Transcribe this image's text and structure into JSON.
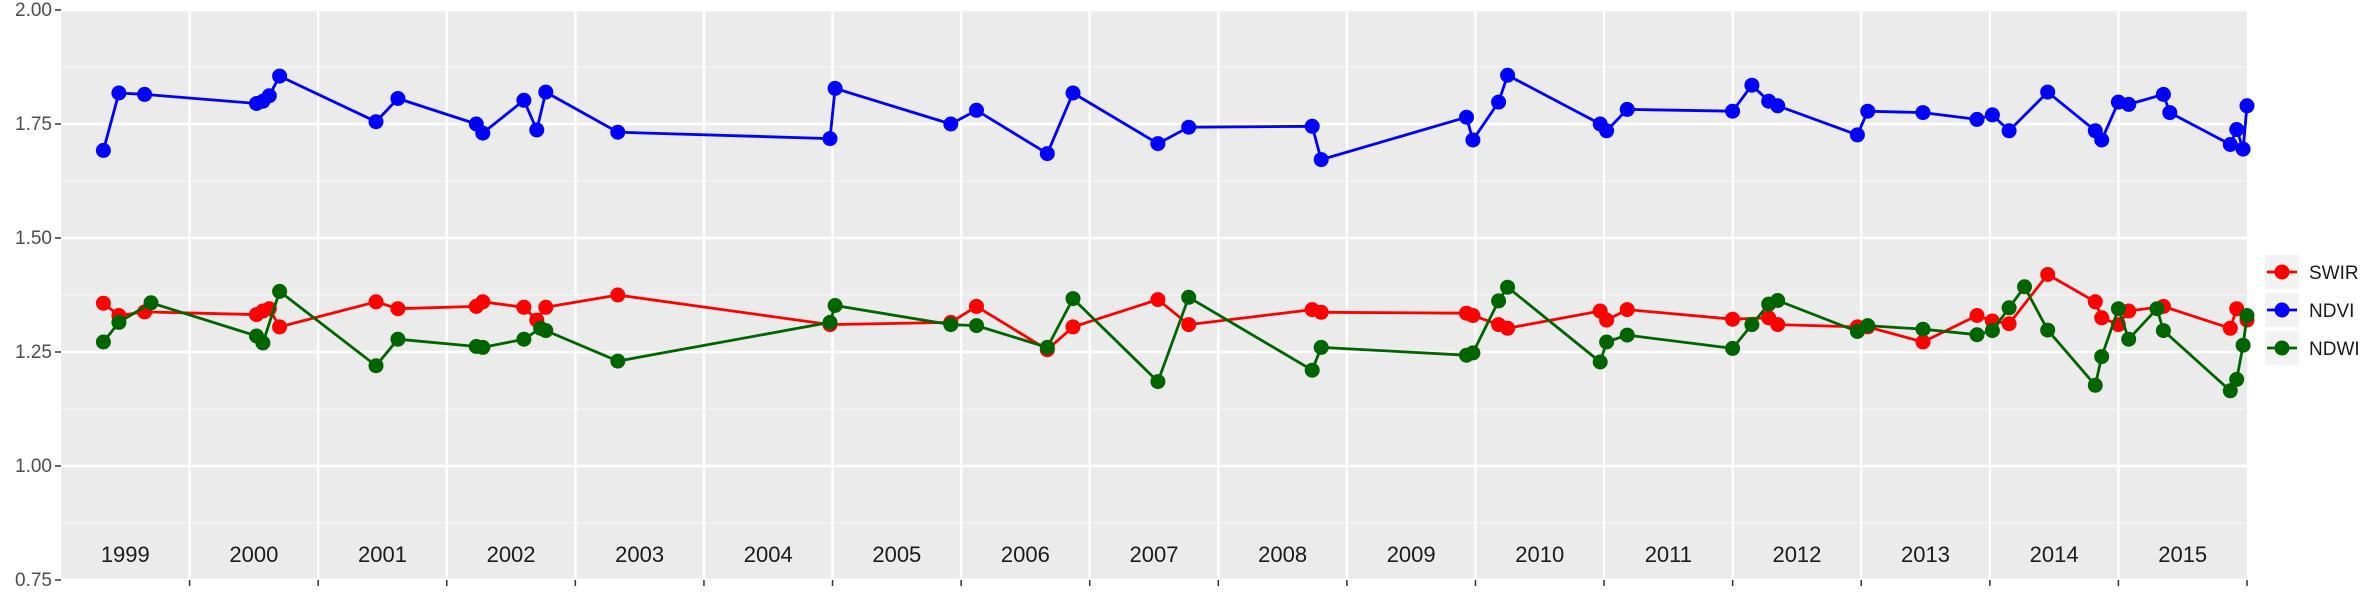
{
  "chart_data": {
    "type": "line",
    "title": "",
    "xlabel": "",
    "ylabel": "",
    "ylim": [
      0.75,
      2.0
    ],
    "y_ticks": [
      "0.75",
      "1.00",
      "1.25",
      "1.50",
      "1.75",
      "2.00"
    ],
    "xlim": [
      1999.0,
      2016.0
    ],
    "year_labels": [
      "1999",
      "2000",
      "2001",
      "2002",
      "2003",
      "2004",
      "2005",
      "2006",
      "2007",
      "2008",
      "2009",
      "2010",
      "2011",
      "2012",
      "2013",
      "2014",
      "2015"
    ],
    "grid": true,
    "legend_position": "right",
    "series": [
      {
        "name": "SWIR",
        "color": "#ff0000",
        "points": [
          [
            1999.33,
            1.357
          ],
          [
            1999.45,
            1.33
          ],
          [
            1999.65,
            1.338
          ],
          [
            2000.52,
            1.332
          ],
          [
            2000.57,
            1.34
          ],
          [
            2000.62,
            1.345
          ],
          [
            2000.7,
            1.305
          ],
          [
            2001.45,
            1.36
          ],
          [
            2001.62,
            1.345
          ],
          [
            2002.23,
            1.35
          ],
          [
            2002.28,
            1.36
          ],
          [
            2002.6,
            1.348
          ],
          [
            2002.7,
            1.32
          ],
          [
            2002.77,
            1.348
          ],
          [
            2003.33,
            1.375
          ],
          [
            2004.98,
            1.31
          ],
          [
            2005.92,
            1.315
          ],
          [
            2006.12,
            1.35
          ],
          [
            2006.67,
            1.255
          ],
          [
            2006.87,
            1.305
          ],
          [
            2007.53,
            1.365
          ],
          [
            2007.77,
            1.31
          ],
          [
            2008.73,
            1.343
          ],
          [
            2008.8,
            1.337
          ],
          [
            2009.93,
            1.335
          ],
          [
            2009.98,
            1.33
          ],
          [
            2010.18,
            1.31
          ],
          [
            2010.25,
            1.302
          ],
          [
            2010.97,
            1.34
          ],
          [
            2011.02,
            1.32
          ],
          [
            2011.18,
            1.343
          ],
          [
            2012.0,
            1.322
          ],
          [
            2012.28,
            1.325
          ],
          [
            2012.35,
            1.31
          ],
          [
            2012.97,
            1.305
          ],
          [
            2013.05,
            1.305
          ],
          [
            2013.48,
            1.272
          ],
          [
            2013.9,
            1.33
          ],
          [
            2014.02,
            1.318
          ],
          [
            2014.15,
            1.312
          ],
          [
            2014.45,
            1.42
          ],
          [
            2014.82,
            1.36
          ],
          [
            2014.87,
            1.325
          ],
          [
            2015.0,
            1.31
          ],
          [
            2015.08,
            1.34
          ],
          [
            2015.35,
            1.35
          ],
          [
            2015.87,
            1.302
          ],
          [
            2015.92,
            1.345
          ],
          [
            2016.0,
            1.32
          ]
        ]
      },
      {
        "name": "NDVI",
        "color": "#0000ff",
        "points": [
          [
            1999.33,
            1.692
          ],
          [
            1999.45,
            1.818
          ],
          [
            1999.65,
            1.815
          ],
          [
            2000.52,
            1.795
          ],
          [
            2000.57,
            1.8
          ],
          [
            2000.62,
            1.812
          ],
          [
            2000.7,
            1.855
          ],
          [
            2001.45,
            1.755
          ],
          [
            2001.62,
            1.806
          ],
          [
            2002.23,
            1.75
          ],
          [
            2002.28,
            1.73
          ],
          [
            2002.6,
            1.802
          ],
          [
            2002.7,
            1.737
          ],
          [
            2002.77,
            1.82
          ],
          [
            2003.33,
            1.732
          ],
          [
            2004.98,
            1.718
          ],
          [
            2005.02,
            1.828
          ],
          [
            2005.92,
            1.75
          ],
          [
            2006.12,
            1.78
          ],
          [
            2006.67,
            1.685
          ],
          [
            2006.87,
            1.818
          ],
          [
            2007.53,
            1.707
          ],
          [
            2007.77,
            1.743
          ],
          [
            2008.73,
            1.745
          ],
          [
            2008.8,
            1.672
          ],
          [
            2009.93,
            1.765
          ],
          [
            2009.98,
            1.715
          ],
          [
            2010.18,
            1.798
          ],
          [
            2010.25,
            1.857
          ],
          [
            2010.97,
            1.75
          ],
          [
            2011.02,
            1.735
          ],
          [
            2011.18,
            1.782
          ],
          [
            2012.0,
            1.778
          ],
          [
            2012.15,
            1.835
          ],
          [
            2012.28,
            1.8
          ],
          [
            2012.35,
            1.79
          ],
          [
            2012.97,
            1.726
          ],
          [
            2013.05,
            1.778
          ],
          [
            2013.48,
            1.775
          ],
          [
            2013.9,
            1.76
          ],
          [
            2014.02,
            1.77
          ],
          [
            2014.15,
            1.735
          ],
          [
            2014.45,
            1.82
          ],
          [
            2014.82,
            1.735
          ],
          [
            2014.87,
            1.715
          ],
          [
            2015.0,
            1.798
          ],
          [
            2015.08,
            1.793
          ],
          [
            2015.35,
            1.815
          ],
          [
            2015.4,
            1.775
          ],
          [
            2015.87,
            1.705
          ],
          [
            2015.92,
            1.738
          ],
          [
            2015.97,
            1.695
          ],
          [
            2016.0,
            1.79
          ]
        ]
      },
      {
        "name": "NDWI",
        "color": "#006400",
        "points": [
          [
            1999.33,
            1.272
          ],
          [
            1999.45,
            1.315
          ],
          [
            1999.7,
            1.358
          ],
          [
            2000.52,
            1.285
          ],
          [
            2000.57,
            1.27
          ],
          [
            2000.7,
            1.383
          ],
          [
            2001.45,
            1.22
          ],
          [
            2001.62,
            1.278
          ],
          [
            2002.23,
            1.262
          ],
          [
            2002.28,
            1.26
          ],
          [
            2002.6,
            1.278
          ],
          [
            2002.73,
            1.302
          ],
          [
            2002.77,
            1.297
          ],
          [
            2003.33,
            1.23
          ],
          [
            2004.98,
            1.315
          ],
          [
            2005.02,
            1.352
          ],
          [
            2005.92,
            1.31
          ],
          [
            2006.12,
            1.308
          ],
          [
            2006.67,
            1.26
          ],
          [
            2006.87,
            1.367
          ],
          [
            2007.53,
            1.185
          ],
          [
            2007.77,
            1.37
          ],
          [
            2008.73,
            1.21
          ],
          [
            2008.8,
            1.26
          ],
          [
            2009.93,
            1.243
          ],
          [
            2009.98,
            1.248
          ],
          [
            2010.18,
            1.362
          ],
          [
            2010.25,
            1.392
          ],
          [
            2010.97,
            1.228
          ],
          [
            2011.02,
            1.272
          ],
          [
            2011.18,
            1.287
          ],
          [
            2012.0,
            1.258
          ],
          [
            2012.15,
            1.31
          ],
          [
            2012.28,
            1.355
          ],
          [
            2012.35,
            1.363
          ],
          [
            2012.97,
            1.295
          ],
          [
            2013.05,
            1.308
          ],
          [
            2013.48,
            1.3
          ],
          [
            2013.9,
            1.288
          ],
          [
            2014.02,
            1.297
          ],
          [
            2014.15,
            1.347
          ],
          [
            2014.27,
            1.393
          ],
          [
            2014.45,
            1.298
          ],
          [
            2014.82,
            1.177
          ],
          [
            2014.87,
            1.24
          ],
          [
            2015.0,
            1.345
          ],
          [
            2015.08,
            1.278
          ],
          [
            2015.3,
            1.345
          ],
          [
            2015.35,
            1.297
          ],
          [
            2015.87,
            1.165
          ],
          [
            2015.92,
            1.19
          ],
          [
            2015.97,
            1.265
          ],
          [
            2016.0,
            1.33
          ]
        ]
      }
    ]
  }
}
